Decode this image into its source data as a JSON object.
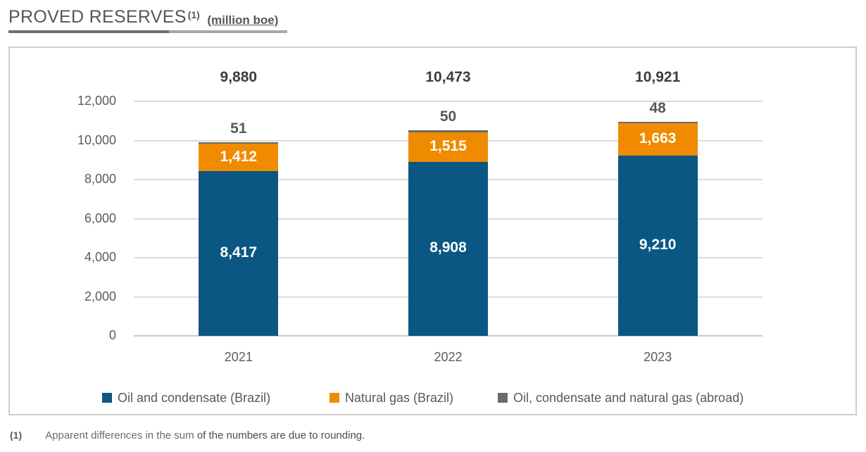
{
  "header": {
    "title": "PROVED RESERVES",
    "footnote_ref": "(1)",
    "unit": "(million boe)"
  },
  "chart_data": {
    "type": "bar",
    "stacked": true,
    "title": "PROVED RESERVES (million boe)",
    "categories": [
      "2021",
      "2022",
      "2023"
    ],
    "series": [
      {
        "name": "Oil and condensate (Brazil)",
        "color": "#0b5783",
        "values": [
          8417,
          8908,
          9210
        ],
        "labels": [
          "8,417",
          "8,908",
          "9,210"
        ]
      },
      {
        "name": "Natural gas (Brazil)",
        "color": "#f08b00",
        "values": [
          1412,
          1515,
          1663
        ],
        "labels": [
          "1,412",
          "1,515",
          "1,663"
        ]
      },
      {
        "name": "Oil, condensate and natural gas (abroad)",
        "color": "#6a6b6d",
        "values": [
          51,
          50,
          48
        ],
        "labels": [
          "51",
          "50",
          "48"
        ]
      }
    ],
    "totals": [
      9880,
      10473,
      10921
    ],
    "total_labels": [
      "9,880",
      "10,473",
      "10,921"
    ],
    "ylim": [
      0,
      12000
    ],
    "ytick_interval": 2000,
    "yticks": [
      "12,000",
      "10,000",
      "8,000",
      "6,000",
      "4,000",
      "2,000",
      "0"
    ],
    "grid": true,
    "legend_position": "bottom"
  },
  "legend": {
    "items": [
      {
        "label": "Oil and condensate (Brazil)",
        "color": "#0b5783"
      },
      {
        "label": "Natural gas (Brazil)",
        "color": "#f08b00"
      },
      {
        "label": "Oil, condensate and natural gas (abroad)",
        "color": "#6a6b6d"
      }
    ]
  },
  "footnote": {
    "marker": "(1)",
    "text_regular": "Apparent differences in the sum ",
    "text_emphasis": "of the numbers are due to rounding."
  }
}
